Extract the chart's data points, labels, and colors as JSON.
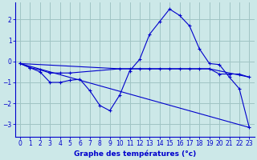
{
  "title": "Graphe des températures (°c)",
  "bg_color": "#cce8e8",
  "grid_color": "#a0c4c4",
  "line_color": "#0000cc",
  "xlim": [
    -0.5,
    23.5
  ],
  "ylim": [
    -3.6,
    2.8
  ],
  "yticks": [
    -3,
    -2,
    -1,
    0,
    1,
    2
  ],
  "xticks": [
    0,
    1,
    2,
    3,
    4,
    5,
    6,
    7,
    8,
    9,
    10,
    11,
    12,
    13,
    14,
    15,
    16,
    17,
    18,
    19,
    20,
    21,
    22,
    23
  ],
  "series": [
    {
      "x": [
        0,
        1,
        2,
        3,
        4,
        5,
        6,
        7,
        8,
        9,
        10,
        11,
        12,
        13,
        14,
        15,
        16,
        17,
        18,
        19,
        20,
        21,
        22,
        23
      ],
      "y": [
        -0.1,
        -0.3,
        -0.5,
        -1.0,
        -1.0,
        -0.9,
        -0.85,
        -1.4,
        -2.1,
        -2.35,
        -1.6,
        -0.45,
        0.1,
        1.3,
        1.9,
        2.5,
        2.2,
        1.7,
        0.6,
        -0.1,
        -0.15,
        -0.75,
        -1.3,
        -3.15
      ],
      "has_markers": true
    },
    {
      "x": [
        0,
        1,
        2,
        3,
        4,
        5,
        10,
        11,
        12,
        13,
        14,
        15,
        16,
        17,
        18,
        19,
        20,
        21,
        22,
        23
      ],
      "y": [
        -0.1,
        -0.3,
        -0.4,
        -0.55,
        -0.55,
        -0.55,
        -0.35,
        -0.35,
        -0.35,
        -0.35,
        -0.35,
        -0.35,
        -0.35,
        -0.35,
        -0.35,
        -0.35,
        -0.6,
        -0.6,
        -0.6,
        -0.75
      ],
      "has_markers": true
    },
    {
      "x": [
        0,
        23
      ],
      "y": [
        -0.1,
        -3.15
      ],
      "has_markers": false
    },
    {
      "x": [
        0,
        10,
        19,
        23
      ],
      "y": [
        -0.1,
        -0.35,
        -0.35,
        -0.75
      ],
      "has_markers": false
    }
  ]
}
